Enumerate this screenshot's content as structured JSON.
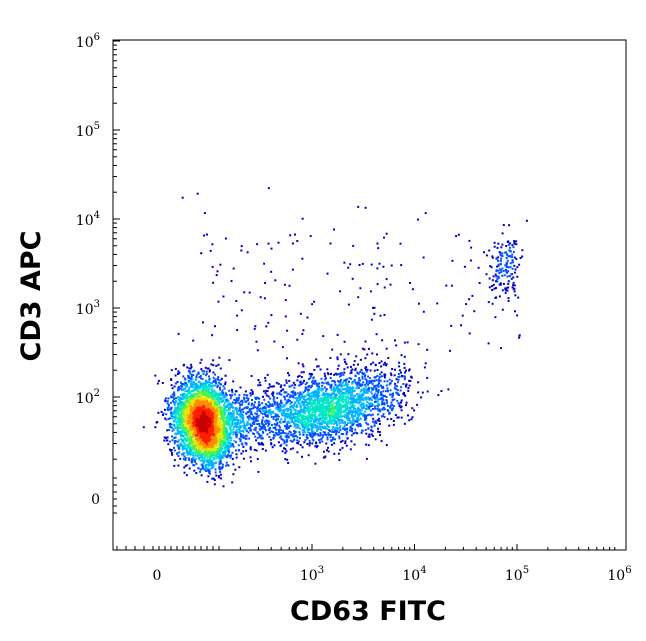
{
  "chart_data": {
    "type": "scatter",
    "style": "flow-cytometry density dot plot (pseudocolor: blue low density to red high density)",
    "xlabel": "CD63 FITC",
    "ylabel": "CD3 APC",
    "x_scale": "biexponential (log with linear region near 0)",
    "y_scale": "biexponential (log with linear region near 0)",
    "x_ticks": [
      {
        "base": "0",
        "exp": ""
      },
      {
        "base": "10",
        "exp": "3"
      },
      {
        "base": "10",
        "exp": "4"
      },
      {
        "base": "10",
        "exp": "5"
      },
      {
        "base": "10",
        "exp": "6"
      }
    ],
    "y_ticks": [
      {
        "base": "0",
        "exp": ""
      },
      {
        "base": "10",
        "exp": "2"
      },
      {
        "base": "10",
        "exp": "3"
      },
      {
        "base": "10",
        "exp": "4"
      },
      {
        "base": "10",
        "exp": "5"
      },
      {
        "base": "10",
        "exp": "6"
      }
    ],
    "populations": [
      {
        "description": "dense double-low population",
        "x_center": 90,
        "y_center": 60,
        "peak_density": "high (red)"
      },
      {
        "description": "CD63-intermediate population",
        "x_center": 2000,
        "y_center": 100,
        "peak_density": "medium (cyan/green)"
      },
      {
        "description": "CD63-high CD3-high cluster",
        "x_center": 75000,
        "y_center": 3000,
        "peak_density": "low (blue)"
      }
    ],
    "colormap": [
      "#0000c8",
      "#0050ff",
      "#00b4ff",
      "#00e6c8",
      "#50f050",
      "#e6e600",
      "#ff8c00",
      "#ff1e00",
      "#c80000"
    ],
    "grid": false,
    "legend": "none"
  }
}
